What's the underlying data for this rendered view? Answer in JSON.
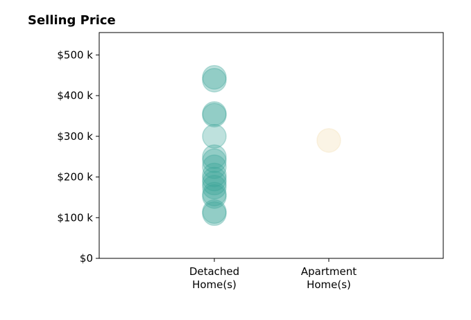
{
  "chart_data": {
    "type": "scatter",
    "title": "Selling Price",
    "xlabel": "",
    "ylabel": "",
    "ylim": [
      0,
      555
    ],
    "y_ticks": [
      {
        "value": 0,
        "label": "$0"
      },
      {
        "value": 100,
        "label": "$100 k"
      },
      {
        "value": 200,
        "label": "$200 k"
      },
      {
        "value": 300,
        "label": "$300 k"
      },
      {
        "value": 400,
        "label": "$400 k"
      },
      {
        "value": 500,
        "label": "$500 k"
      }
    ],
    "categories": [
      {
        "lines": [
          "Detached",
          "Home(s)"
        ]
      },
      {
        "lines": [
          "Apartment",
          "Home(s)"
        ]
      }
    ],
    "series": [
      {
        "category_index": 0,
        "color": "#3ba597",
        "values": [
          445,
          438,
          356,
          352,
          300,
          250,
          240,
          225,
          205,
          195,
          185,
          175,
          158,
          152,
          115,
          110
        ]
      },
      {
        "category_index": 1,
        "color": "#f3deb0",
        "values": [
          290
        ]
      }
    ]
  }
}
